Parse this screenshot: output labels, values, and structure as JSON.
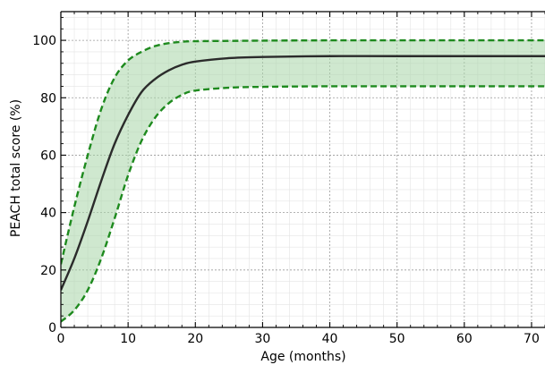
{
  "chart_data": {
    "type": "line",
    "title": "",
    "xlabel": "Age (months)",
    "ylabel": "PEACH total score (%)",
    "xlim": [
      0,
      72
    ],
    "ylim": [
      0,
      110
    ],
    "xticks": [
      0,
      10,
      20,
      30,
      40,
      50,
      60,
      70
    ],
    "yticks": [
      0,
      20,
      40,
      60,
      80,
      100
    ],
    "grid": true,
    "legend": "none",
    "x": [
      0,
      2,
      4,
      6,
      8,
      10,
      12,
      14,
      16,
      18,
      20,
      25,
      30,
      40,
      50,
      60,
      72
    ],
    "series": [
      {
        "role": "median",
        "color": "#2b2b2b",
        "style": "solid",
        "values": [
          13,
          24,
          37,
          51,
          64,
          74,
          82,
          86.5,
          89.5,
          91.5,
          92.6,
          93.8,
          94.2,
          94.5,
          94.5,
          94.5,
          94.5
        ]
      },
      {
        "role": "upper-bound",
        "color": "#1e8a1e",
        "style": "dashed",
        "values": [
          22,
          42,
          60,
          76,
          87,
          93,
          96,
          98,
          99,
          99.5,
          99.7,
          99.8,
          99.9,
          100,
          100,
          100,
          100
        ]
      },
      {
        "role": "lower-bound",
        "color": "#1e8a1e",
        "style": "dashed",
        "values": [
          2,
          6,
          13,
          24,
          38,
          53,
          65,
          73,
          78,
          81,
          82.5,
          83.5,
          83.8,
          84,
          84,
          84,
          84
        ]
      }
    ],
    "band": {
      "fill": "#a8d5a8",
      "opacity": 0.55
    }
  }
}
